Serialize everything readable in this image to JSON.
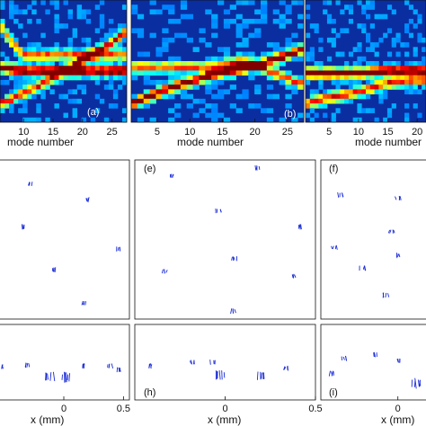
{
  "figure": {
    "top_row": [
      {
        "label": "(a)",
        "ticks": [
          "10",
          "15",
          "20",
          "25"
        ],
        "xlabel": "mode number",
        "tick_modes": [
          10,
          15,
          20,
          25
        ],
        "x_range": [
          6,
          27.5
        ]
      },
      {
        "label": "(b)",
        "ticks": [
          "5",
          "10",
          "15",
          "20",
          "25"
        ],
        "xlabel": "mode number",
        "tick_modes": [
          5,
          10,
          15,
          20,
          25
        ],
        "x_range": [
          1,
          27.5
        ]
      },
      {
        "label": "",
        "ticks": [
          "5",
          "10",
          "15",
          "20"
        ],
        "xlabel": "mode number",
        "tick_modes": [
          5,
          10,
          15,
          20
        ],
        "x_range": [
          1,
          21.5
        ]
      }
    ],
    "middle_row": [
      {
        "label": ""
      },
      {
        "label": "(e)"
      },
      {
        "label": "(f)"
      }
    ],
    "bottom_row": [
      {
        "label": "",
        "ticks": [
          "0",
          "0.5"
        ],
        "tick_values": [
          0,
          0.5
        ],
        "xlabel": "x (mm)",
        "x_range": [
          -0.55,
          0.55
        ]
      },
      {
        "label": "(h)",
        "ticks": [
          "0",
          "0.5"
        ],
        "tick_values": [
          0,
          0.5
        ],
        "xlabel": "x (mm)",
        "x_range": [
          -0.5,
          0.5
        ]
      },
      {
        "label": "(i)",
        "ticks": [
          "0"
        ],
        "tick_values": [
          0
        ],
        "xlabel": "x (mm)",
        "x_range": [
          -0.5,
          0.2
        ]
      }
    ],
    "colors": {
      "heat_bg": "#0a2ea0",
      "marker": "#1a2bd6",
      "frame": "#111111"
    }
  },
  "chart_data": [
    {
      "type": "heatmap",
      "panel": "(a)",
      "x_range": [
        6,
        27.5
      ],
      "traces": [
        {
          "name": "",
          "x": [
            6,
            10,
            15,
            20,
            25,
            27.5
          ],
          "y": [
            0.55,
            0.58,
            0.58,
            0.58,
            0.58,
            0.58
          ],
          "intensity": 0.9
        },
        {
          "name": "",
          "x": [
            6,
            12,
            18,
            24,
            27.5
          ],
          "y": [
            0.85,
            0.72,
            0.55,
            0.38,
            0.26
          ],
          "intensity": 0.7
        },
        {
          "name": "",
          "x": [
            6,
            8,
            10
          ],
          "y": [
            0.2,
            0.35,
            0.45
          ],
          "intensity": 0.6
        }
      ]
    },
    {
      "type": "heatmap",
      "panel": "(b)",
      "x_range": [
        1,
        27.5
      ],
      "traces": [
        {
          "name": "",
          "x": [
            1,
            7,
            13,
            19,
            25,
            27.5
          ],
          "y": [
            0.85,
            0.72,
            0.62,
            0.55,
            0.45,
            0.4
          ],
          "intensity": 0.85
        },
        {
          "name": "",
          "x": [
            13,
            18,
            23,
            27.5
          ],
          "y": [
            0.55,
            0.5,
            0.6,
            0.7
          ],
          "intensity": 0.6
        }
      ]
    },
    {
      "type": "heatmap",
      "panel": "right",
      "x_range": [
        1,
        21.5
      ],
      "traces": [
        {
          "name": "",
          "x": [
            1,
            5,
            10,
            15,
            20,
            21.5
          ],
          "y": [
            0.6,
            0.6,
            0.6,
            0.58,
            0.58,
            0.58
          ],
          "intensity": 0.9
        },
        {
          "name": "",
          "x": [
            1,
            5,
            10,
            15,
            21.5
          ],
          "y": [
            0.85,
            0.8,
            0.75,
            0.68,
            0.65
          ],
          "intensity": 0.65
        }
      ]
    },
    {
      "type": "scatter",
      "panel": "left",
      "x_range": [
        0,
        1
      ],
      "y_range": [
        0,
        1
      ],
      "points": [
        [
          0.25,
          0.15
        ],
        [
          0.68,
          0.25
        ],
        [
          0.19,
          0.42
        ],
        [
          0.91,
          0.56
        ],
        [
          0.43,
          0.69
        ],
        [
          0.65,
          0.9
        ]
      ]
    },
    {
      "type": "scatter",
      "panel": "(e)",
      "x_range": [
        0,
        1
      ],
      "y_range": [
        0,
        1
      ],
      "points": [
        [
          0.2,
          0.1
        ],
        [
          0.68,
          0.05
        ],
        [
          0.46,
          0.32
        ],
        [
          0.92,
          0.42
        ],
        [
          0.55,
          0.62
        ],
        [
          0.88,
          0.73
        ],
        [
          0.17,
          0.7
        ],
        [
          0.55,
          0.95
        ]
      ]
    },
    {
      "type": "scatter",
      "panel": "(f)",
      "x_range": [
        0,
        1
      ],
      "y_range": [
        0,
        1
      ],
      "points": [
        [
          0.18,
          0.22
        ],
        [
          0.71,
          0.24
        ],
        [
          0.65,
          0.45
        ],
        [
          0.12,
          0.55
        ],
        [
          0.7,
          0.6
        ],
        [
          0.38,
          0.68
        ],
        [
          0.6,
          0.85
        ]
      ]
    },
    {
      "type": "scatter",
      "panel": "bottom-left",
      "x_range": [
        -0.55,
        0.55
      ],
      "points": [
        [
          -0.5,
          0.56
        ],
        [
          -0.3,
          0.54
        ],
        [
          -0.12,
          0.69
        ],
        [
          0.02,
          0.7
        ],
        [
          0.18,
          0.55
        ],
        [
          0.39,
          0.55
        ],
        [
          0.47,
          0.6
        ]
      ]
    },
    {
      "type": "scatter",
      "panel": "(h)",
      "x_range": [
        -0.5,
        0.5
      ],
      "points": [
        [
          -0.42,
          0.55
        ],
        [
          -0.18,
          0.5
        ],
        [
          -0.07,
          0.5
        ],
        [
          -0.03,
          0.67
        ],
        [
          0.2,
          0.68
        ],
        [
          0.34,
          0.58
        ]
      ]
    },
    {
      "type": "scatter",
      "panel": "(i)",
      "x_range": [
        -0.5,
        0.2
      ],
      "points": [
        [
          -0.43,
          0.65
        ],
        [
          -0.35,
          0.45
        ],
        [
          -0.15,
          0.4
        ],
        [
          0.0,
          0.48
        ],
        [
          0.12,
          0.78
        ]
      ]
    }
  ]
}
